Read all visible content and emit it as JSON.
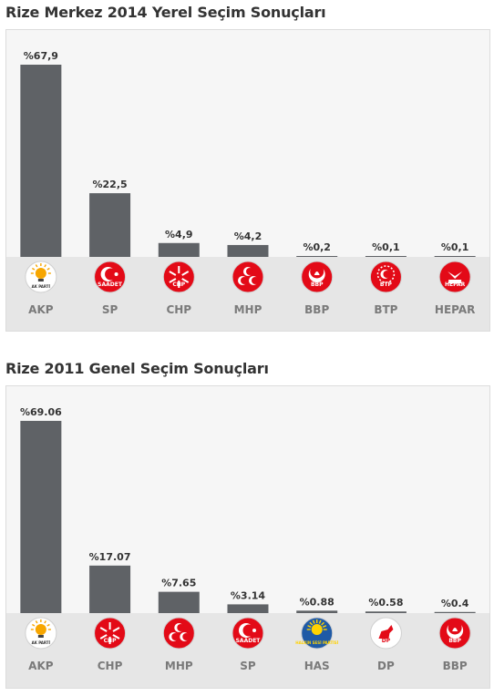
{
  "charts": [
    {
      "title": "Rize Merkez 2014 Yerel Seçim Sonuçları",
      "chart_data": {
        "type": "bar",
        "categories": [
          "AKP",
          "SP",
          "CHP",
          "MHP",
          "BBP",
          "BTP",
          "HEPAR"
        ],
        "values": [
          67.9,
          22.5,
          4.9,
          4.2,
          0.2,
          0.1,
          0.1
        ],
        "value_labels": [
          "%67,9",
          "%22,5",
          "%4,9",
          "%4,2",
          "%0,2",
          "%0,1",
          "%0,1"
        ],
        "xlabel": "",
        "ylabel": "",
        "ylim": [
          0,
          67.9
        ],
        "grid": false,
        "legend": "none",
        "bar_color": "#5f6266"
      },
      "logos": [
        {
          "icon": "akp-bulb-icon",
          "text": "AK PARTİ",
          "bg": "#ffffff",
          "fg": "#f7a600"
        },
        {
          "icon": "saadet-icon",
          "text": "SAADET",
          "bg": "#e30a17",
          "fg": "#ffffff"
        },
        {
          "icon": "chp-six-arrows-icon",
          "text": "CHP",
          "bg": "#e30a17",
          "fg": "#ffffff"
        },
        {
          "icon": "mhp-three-crescents-icon",
          "text": "",
          "bg": "#e30a17",
          "fg": "#ffffff"
        },
        {
          "icon": "bbp-crescent-tulip-icon",
          "text": "BBP",
          "bg": "#e30a17",
          "fg": "#ffffff"
        },
        {
          "icon": "btp-star-circle-icon",
          "text": "BTP",
          "bg": "#e30a17",
          "fg": "#ffffff"
        },
        {
          "icon": "hepar-bird-icon",
          "text": "HEPAR",
          "bg": "#e30a17",
          "fg": "#ffffff"
        }
      ]
    },
    {
      "title": "Rize 2011 Genel Seçim Sonuçları",
      "chart_data": {
        "type": "bar",
        "categories": [
          "AKP",
          "CHP",
          "MHP",
          "SP",
          "HAS",
          "DP",
          "BBP"
        ],
        "values": [
          69.06,
          17.07,
          7.65,
          3.14,
          0.88,
          0.58,
          0.4
        ],
        "value_labels": [
          "%69.06",
          "%17.07",
          "%7.65",
          "%3.14",
          "%0.88",
          "%0.58",
          "%0.4"
        ],
        "xlabel": "",
        "ylabel": "",
        "ylim": [
          0,
          69.06
        ],
        "grid": false,
        "legend": "none",
        "bar_color": "#5f6266"
      },
      "logos": [
        {
          "icon": "akp-bulb-icon",
          "text": "AK PARTİ",
          "bg": "#ffffff",
          "fg": "#f7a600"
        },
        {
          "icon": "chp-six-arrows-icon",
          "text": "CHP",
          "bg": "#e30a17",
          "fg": "#ffffff"
        },
        {
          "icon": "mhp-three-crescents-icon",
          "text": "",
          "bg": "#e30a17",
          "fg": "#ffffff"
        },
        {
          "icon": "saadet-icon",
          "text": "SAADET",
          "bg": "#e30a17",
          "fg": "#ffffff"
        },
        {
          "icon": "has-sun-icon",
          "text": "HALKIN SESİ PARTİSİ",
          "bg": "#1f5aa6",
          "fg": "#ffd200"
        },
        {
          "icon": "dp-horse-icon",
          "text": "DP",
          "bg": "#ffffff",
          "fg": "#e30a17"
        },
        {
          "icon": "bbp-crescent-tulip-icon",
          "text": "BBP",
          "bg": "#e30a17",
          "fg": "#ffffff"
        }
      ]
    }
  ]
}
